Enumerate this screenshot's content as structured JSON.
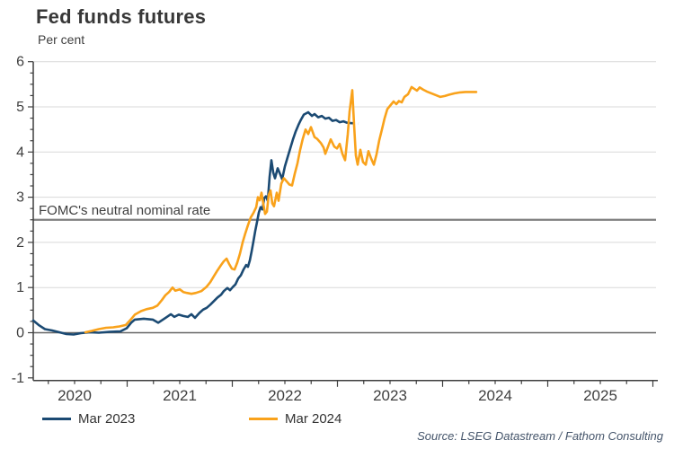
{
  "header": {
    "title": "Fed funds futures",
    "unit_label": "Per cent"
  },
  "footer": {
    "source": "Source: LSEG Datastream / Fathom Consulting"
  },
  "chart_data": {
    "type": "line",
    "title": "Fed funds futures",
    "ylabel": "Per cent",
    "ylim": [
      -1,
      6
    ],
    "xlim": [
      2020.1,
      2026.05
    ],
    "y_ticks": [
      "-1",
      "0",
      "1",
      "2",
      "3",
      "4",
      "5",
      "6"
    ],
    "y_tick_values": [
      -1,
      0,
      1,
      2,
      3,
      4,
      5,
      6
    ],
    "x_ticks": [
      "2020",
      "2021",
      "2022",
      "2023",
      "2024",
      "2025"
    ],
    "x_tick_values": [
      2020,
      2021,
      2022,
      2023,
      2024,
      2025
    ],
    "grid": "horizontal",
    "legend_position": "bottom",
    "axis_color": "#3f3f3f",
    "grid_color": "#d9d9d9",
    "annotations": [
      {
        "label": "FOMC's neutral nominal rate",
        "value": 2.5,
        "color": "#7f7f7f",
        "label_color": "#3f3f3f"
      },
      {
        "label": "",
        "value": 0,
        "color": "#666666"
      }
    ],
    "series": [
      {
        "name": "Mar 2023",
        "color": "#1B4A73",
        "points": [
          [
            2020.107,
            0.27
          ],
          [
            2020.158,
            0.17
          ],
          [
            2020.218,
            0.08
          ],
          [
            2020.286,
            0.05
          ],
          [
            2020.355,
            0.01
          ],
          [
            2020.423,
            -0.03
          ],
          [
            2020.491,
            -0.04
          ],
          [
            2020.56,
            -0.01
          ],
          [
            2020.645,
            0.01
          ],
          [
            2020.731,
            0.0
          ],
          [
            2020.833,
            0.02
          ],
          [
            2020.936,
            0.03
          ],
          [
            2020.996,
            0.1
          ],
          [
            2021.038,
            0.22
          ],
          [
            2021.073,
            0.29
          ],
          [
            2021.158,
            0.31
          ],
          [
            2021.244,
            0.29
          ],
          [
            2021.295,
            0.22
          ],
          [
            2021.372,
            0.34
          ],
          [
            2021.415,
            0.41
          ],
          [
            2021.449,
            0.35
          ],
          [
            2021.491,
            0.4
          ],
          [
            2021.534,
            0.37
          ],
          [
            2021.577,
            0.35
          ],
          [
            2021.611,
            0.41
          ],
          [
            2021.645,
            0.33
          ],
          [
            2021.688,
            0.44
          ],
          [
            2021.722,
            0.51
          ],
          [
            2021.756,
            0.55
          ],
          [
            2021.791,
            0.62
          ],
          [
            2021.825,
            0.7
          ],
          [
            2021.859,
            0.78
          ],
          [
            2021.893,
            0.84
          ],
          [
            2021.919,
            0.92
          ],
          [
            2021.953,
            0.99
          ],
          [
            2021.979,
            0.94
          ],
          [
            2022.004,
            1.01
          ],
          [
            2022.03,
            1.07
          ],
          [
            2022.056,
            1.2
          ],
          [
            2022.081,
            1.27
          ],
          [
            2022.107,
            1.4
          ],
          [
            2022.132,
            1.5
          ],
          [
            2022.149,
            1.46
          ],
          [
            2022.167,
            1.6
          ],
          [
            2022.184,
            1.8
          ],
          [
            2022.201,
            2.02
          ],
          [
            2022.218,
            2.25
          ],
          [
            2022.235,
            2.45
          ],
          [
            2022.252,
            2.66
          ],
          [
            2022.269,
            2.78
          ],
          [
            2022.286,
            2.73
          ],
          [
            2022.303,
            2.98
          ],
          [
            2022.32,
            3.02
          ],
          [
            2022.338,
            2.92
          ],
          [
            2022.355,
            3.45
          ],
          [
            2022.372,
            3.82
          ],
          [
            2022.389,
            3.55
          ],
          [
            2022.406,
            3.42
          ],
          [
            2022.432,
            3.64
          ],
          [
            2022.457,
            3.5
          ],
          [
            2022.474,
            3.4
          ],
          [
            2022.5,
            3.68
          ],
          [
            2022.526,
            3.88
          ],
          [
            2022.551,
            4.08
          ],
          [
            2022.577,
            4.28
          ],
          [
            2022.603,
            4.46
          ],
          [
            2022.629,
            4.6
          ],
          [
            2022.654,
            4.72
          ],
          [
            2022.68,
            4.83
          ],
          [
            2022.722,
            4.88
          ],
          [
            2022.757,
            4.8
          ],
          [
            2022.782,
            4.84
          ],
          [
            2022.817,
            4.77
          ],
          [
            2022.851,
            4.8
          ],
          [
            2022.885,
            4.74
          ],
          [
            2022.919,
            4.76
          ],
          [
            2022.953,
            4.69
          ],
          [
            2022.987,
            4.71
          ],
          [
            2023.021,
            4.66
          ],
          [
            2023.056,
            4.68
          ],
          [
            2023.09,
            4.65
          ]
        ],
        "dash_tail": [
          [
            2023.107,
            4.65
          ],
          [
            2023.124,
            4.64
          ],
          [
            2023.201,
            4.63
          ]
        ]
      },
      {
        "name": "Mar 2024",
        "color": "#F9A21B",
        "points": [
          [
            2020.603,
            0.01
          ],
          [
            2020.662,
            0.04
          ],
          [
            2020.731,
            0.08
          ],
          [
            2020.799,
            0.11
          ],
          [
            2020.868,
            0.12
          ],
          [
            2020.927,
            0.14
          ],
          [
            2020.987,
            0.17
          ],
          [
            2021.03,
            0.28
          ],
          [
            2021.073,
            0.4
          ],
          [
            2021.133,
            0.48
          ],
          [
            2021.184,
            0.52
          ],
          [
            2021.244,
            0.55
          ],
          [
            2021.287,
            0.6
          ],
          [
            2021.329,
            0.72
          ],
          [
            2021.363,
            0.83
          ],
          [
            2021.398,
            0.9
          ],
          [
            2021.432,
            1.0
          ],
          [
            2021.457,
            0.93
          ],
          [
            2021.5,
            0.96
          ],
          [
            2021.534,
            0.9
          ],
          [
            2021.568,
            0.88
          ],
          [
            2021.611,
            0.86
          ],
          [
            2021.654,
            0.88
          ],
          [
            2021.705,
            0.92
          ],
          [
            2021.756,
            1.02
          ],
          [
            2021.791,
            1.12
          ],
          [
            2021.825,
            1.25
          ],
          [
            2021.859,
            1.38
          ],
          [
            2021.893,
            1.5
          ],
          [
            2021.919,
            1.58
          ],
          [
            2021.945,
            1.64
          ],
          [
            2021.97,
            1.52
          ],
          [
            2021.996,
            1.42
          ],
          [
            2022.021,
            1.4
          ],
          [
            2022.047,
            1.55
          ],
          [
            2022.073,
            1.75
          ],
          [
            2022.098,
            2.0
          ],
          [
            2022.124,
            2.2
          ],
          [
            2022.149,
            2.38
          ],
          [
            2022.175,
            2.55
          ],
          [
            2022.201,
            2.65
          ],
          [
            2022.227,
            2.78
          ],
          [
            2022.244,
            3.0
          ],
          [
            2022.261,
            2.93
          ],
          [
            2022.278,
            3.1
          ],
          [
            2022.295,
            2.85
          ],
          [
            2022.312,
            2.63
          ],
          [
            2022.329,
            2.68
          ],
          [
            2022.346,
            3.05
          ],
          [
            2022.363,
            3.15
          ],
          [
            2022.38,
            2.86
          ],
          [
            2022.397,
            2.8
          ],
          [
            2022.423,
            3.1
          ],
          [
            2022.44,
            2.92
          ],
          [
            2022.466,
            3.3
          ],
          [
            2022.491,
            3.42
          ],
          [
            2022.517,
            3.35
          ],
          [
            2022.543,
            3.28
          ],
          [
            2022.568,
            3.26
          ],
          [
            2022.594,
            3.52
          ],
          [
            2022.62,
            3.75
          ],
          [
            2022.645,
            4.05
          ],
          [
            2022.671,
            4.3
          ],
          [
            2022.697,
            4.5
          ],
          [
            2022.722,
            4.4
          ],
          [
            2022.748,
            4.55
          ],
          [
            2022.782,
            4.33
          ],
          [
            2022.808,
            4.29
          ],
          [
            2022.842,
            4.2
          ],
          [
            2022.868,
            4.1
          ],
          [
            2022.885,
            3.96
          ],
          [
            2022.91,
            4.12
          ],
          [
            2022.936,
            4.28
          ],
          [
            2022.97,
            4.12
          ],
          [
            2022.996,
            4.08
          ],
          [
            2023.021,
            4.18
          ],
          [
            2023.047,
            3.96
          ],
          [
            2023.073,
            3.82
          ],
          [
            2023.098,
            4.4
          ],
          [
            2023.115,
            4.9
          ],
          [
            2023.141,
            5.37
          ],
          [
            2023.158,
            4.6
          ],
          [
            2023.175,
            3.92
          ],
          [
            2023.192,
            3.72
          ],
          [
            2023.218,
            4.05
          ],
          [
            2023.243,
            3.78
          ],
          [
            2023.269,
            3.72
          ],
          [
            2023.295,
            4.02
          ],
          [
            2023.321,
            3.85
          ],
          [
            2023.346,
            3.72
          ],
          [
            2023.372,
            3.95
          ],
          [
            2023.397,
            4.25
          ],
          [
            2023.423,
            4.5
          ],
          [
            2023.449,
            4.75
          ],
          [
            2023.474,
            4.95
          ],
          [
            2023.509,
            5.05
          ],
          [
            2023.534,
            5.12
          ],
          [
            2023.56,
            5.06
          ],
          [
            2023.585,
            5.13
          ],
          [
            2023.611,
            5.1
          ],
          [
            2023.637,
            5.22
          ],
          [
            2023.671,
            5.28
          ],
          [
            2023.705,
            5.44
          ],
          [
            2023.731,
            5.4
          ],
          [
            2023.756,
            5.36
          ],
          [
            2023.782,
            5.43
          ],
          [
            2023.816,
            5.38
          ],
          [
            2023.85,
            5.34
          ],
          [
            2023.893,
            5.3
          ],
          [
            2023.936,
            5.26
          ],
          [
            2023.979,
            5.22
          ],
          [
            2024.021,
            5.24
          ],
          [
            2024.064,
            5.27
          ],
          [
            2024.115,
            5.3
          ],
          [
            2024.166,
            5.32
          ],
          [
            2024.218,
            5.33
          ],
          [
            2024.269,
            5.33
          ],
          [
            2024.32,
            5.33
          ]
        ],
        "dash_tail": []
      }
    ]
  }
}
